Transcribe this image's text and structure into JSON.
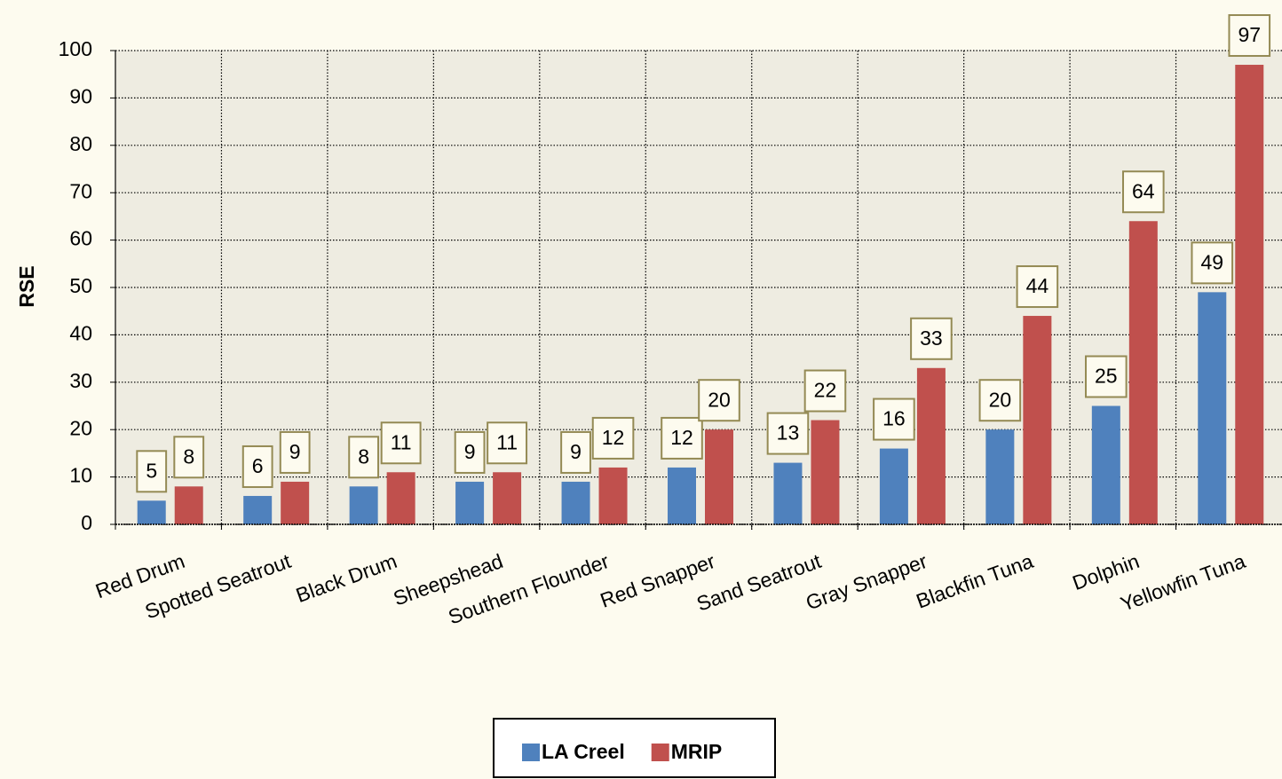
{
  "chart_data": {
    "type": "bar",
    "y_label": "RSE",
    "categories": [
      "Red Drum",
      "Spotted Seatrout",
      "Black Drum",
      "Sheepshead",
      "Southern Flounder",
      "Red Snapper",
      "Sand Seatrout",
      "Gray Snapper",
      "Blackfin Tuna",
      "Dolphin",
      "Yellowfin Tuna"
    ],
    "series": [
      {
        "name": "LA Creel",
        "color": "#4f81bd",
        "values": [
          5,
          6,
          8,
          9,
          9,
          12,
          13,
          16,
          20,
          25,
          49
        ]
      },
      {
        "name": "MRIP",
        "color": "#c0504d",
        "values": [
          8,
          9,
          11,
          11,
          12,
          20,
          22,
          33,
          44,
          64,
          97
        ]
      }
    ],
    "ylim": [
      0,
      100
    ],
    "yticks": [
      0,
      10,
      20,
      30,
      40,
      50,
      60,
      70,
      80,
      90,
      100
    ],
    "grid": true,
    "legend": "bottom"
  }
}
